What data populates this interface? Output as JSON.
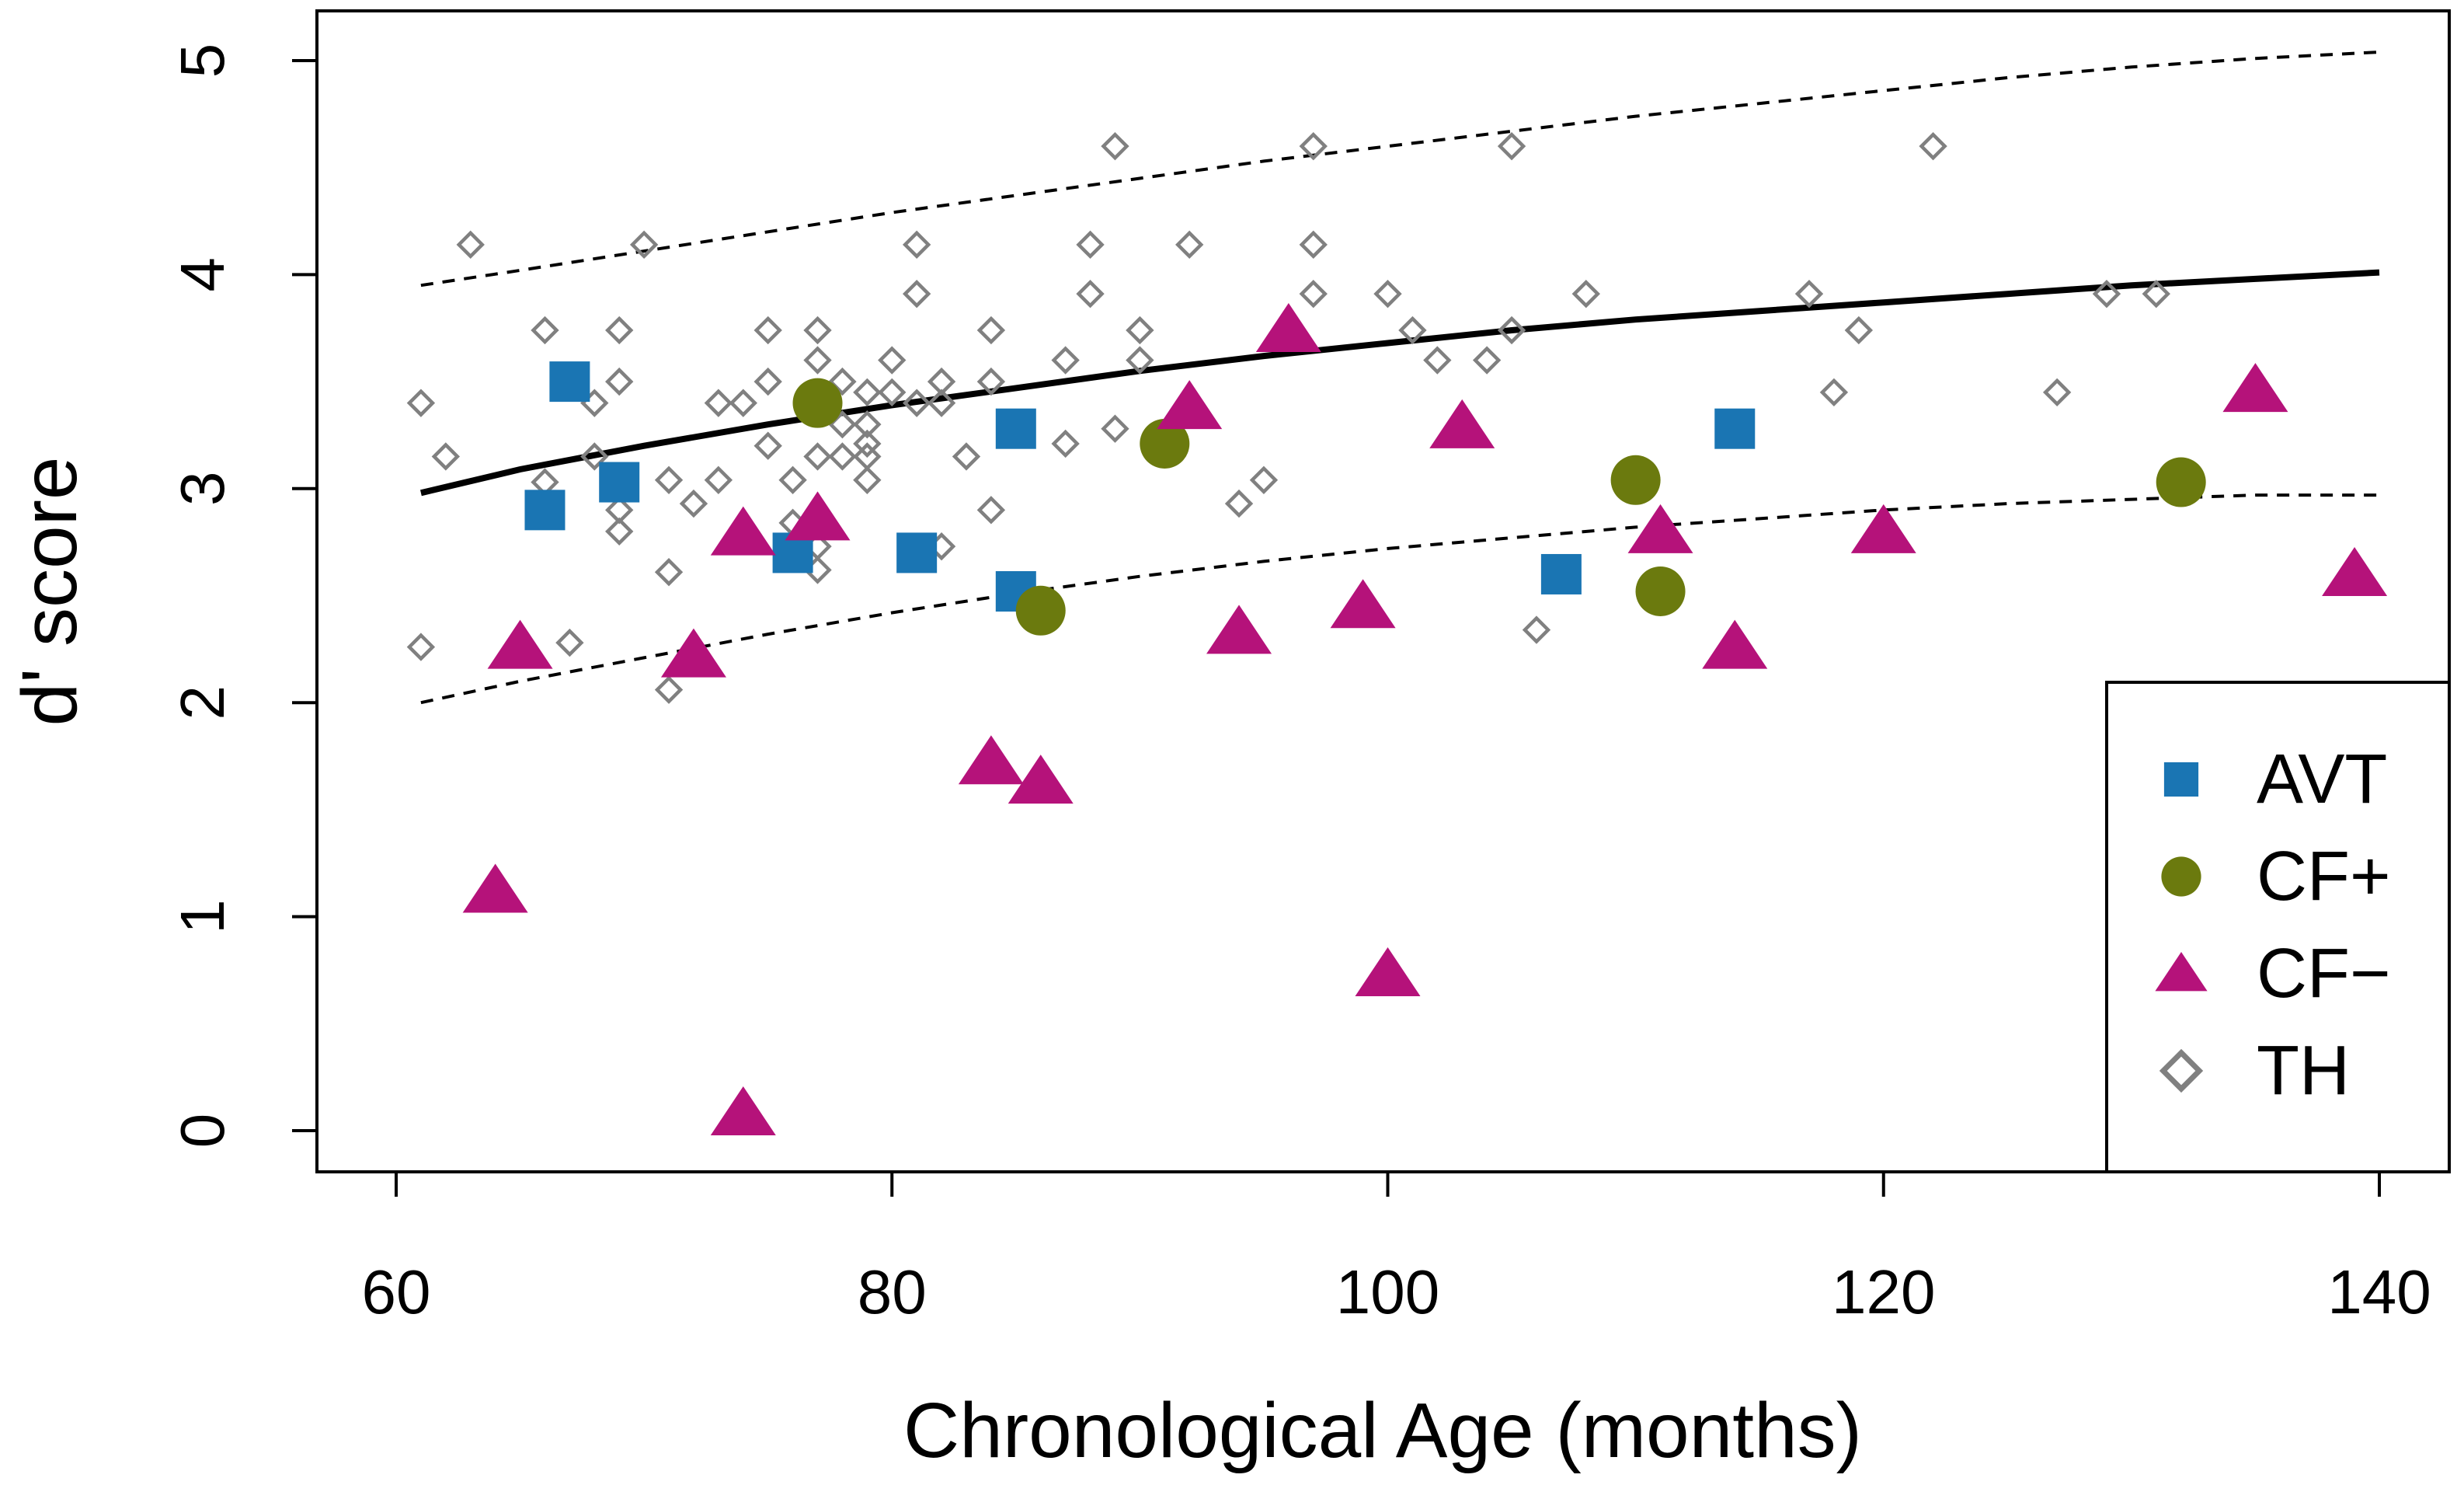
{
  "chart_data": {
    "type": "scatter",
    "title": "",
    "xlabel": "Chronological Age (months)",
    "ylabel": "d' score",
    "xlim": [
      57,
      143
    ],
    "ylim": [
      -0.2,
      5.25
    ],
    "xticks": [
      60,
      80,
      100,
      120,
      140
    ],
    "yticks": [
      0,
      1,
      2,
      3,
      4,
      5
    ],
    "grid": false,
    "legend_position": "bottom-right",
    "series": [
      {
        "name": "AVT",
        "marker": "square",
        "color": "#1a75b3",
        "points": [
          [
            66,
            2.9
          ],
          [
            67,
            3.5
          ],
          [
            69,
            3.03
          ],
          [
            76,
            2.7
          ],
          [
            81,
            2.7
          ],
          [
            85,
            3.28
          ],
          [
            85,
            2.52
          ],
          [
            107,
            2.6
          ],
          [
            114,
            3.28
          ]
        ]
      },
      {
        "name": "CF+",
        "marker": "circle",
        "color": "#6b7a0e",
        "points": [
          [
            77,
            3.4
          ],
          [
            86,
            2.43
          ],
          [
            91,
            3.21
          ],
          [
            110,
            3.04
          ],
          [
            111,
            2.52
          ],
          [
            132,
            3.03
          ]
        ]
      },
      {
        "name": "CF−",
        "marker": "triangle",
        "color": "#b5127a",
        "points": [
          [
            64,
            1.12
          ],
          [
            65,
            2.26
          ],
          [
            72,
            2.22
          ],
          [
            74,
            2.79
          ],
          [
            74,
            0.08
          ],
          [
            77,
            2.86
          ],
          [
            84,
            1.72
          ],
          [
            86,
            1.63
          ],
          [
            92,
            3.38
          ],
          [
            94,
            2.33
          ],
          [
            96,
            3.74
          ],
          [
            99,
            2.45
          ],
          [
            100,
            0.73
          ],
          [
            103,
            3.29
          ],
          [
            111,
            2.8
          ],
          [
            114,
            2.26
          ],
          [
            120,
            2.8
          ],
          [
            135,
            3.46
          ],
          [
            139,
            2.6
          ]
        ]
      },
      {
        "name": "TH",
        "marker": "diamond-open",
        "color": "#808080",
        "points": [
          [
            61,
            3.4
          ],
          [
            61,
            2.26
          ],
          [
            62,
            3.15
          ],
          [
            63,
            4.14
          ],
          [
            66,
            3.74
          ],
          [
            66,
            3.03
          ],
          [
            67,
            2.28
          ],
          [
            68,
            3.4
          ],
          [
            68,
            3.15
          ],
          [
            69,
            3.74
          ],
          [
            69,
            3.5
          ],
          [
            69,
            2.9
          ],
          [
            69,
            2.8
          ],
          [
            70,
            4.14
          ],
          [
            71,
            3.04
          ],
          [
            71,
            2.61
          ],
          [
            71,
            2.06
          ],
          [
            72,
            2.93
          ],
          [
            73,
            3.4
          ],
          [
            73,
            3.04
          ],
          [
            74,
            3.4
          ],
          [
            75,
            3.74
          ],
          [
            75,
            3.5
          ],
          [
            75,
            3.2
          ],
          [
            76,
            3.04
          ],
          [
            76,
            2.84
          ],
          [
            77,
            3.74
          ],
          [
            77,
            3.6
          ],
          [
            77,
            3.15
          ],
          [
            77,
            2.73
          ],
          [
            77,
            2.62
          ],
          [
            78,
            3.5
          ],
          [
            78,
            3.3
          ],
          [
            78,
            3.15
          ],
          [
            79,
            3.45
          ],
          [
            79,
            3.3
          ],
          [
            79,
            3.21
          ],
          [
            79,
            3.15
          ],
          [
            79,
            3.04
          ],
          [
            80,
            3.6
          ],
          [
            80,
            3.45
          ],
          [
            81,
            4.14
          ],
          [
            81,
            3.91
          ],
          [
            81,
            3.4
          ],
          [
            82,
            3.5
          ],
          [
            82,
            3.4
          ],
          [
            82,
            2.73
          ],
          [
            83,
            3.15
          ],
          [
            84,
            3.74
          ],
          [
            84,
            3.5
          ],
          [
            84,
            2.9
          ],
          [
            87,
            3.6
          ],
          [
            87,
            3.21
          ],
          [
            88,
            4.14
          ],
          [
            88,
            3.91
          ],
          [
            89,
            4.6
          ],
          [
            89,
            3.28
          ],
          [
            90,
            3.74
          ],
          [
            90,
            3.6
          ],
          [
            92,
            4.14
          ],
          [
            94,
            2.93
          ],
          [
            95,
            3.04
          ],
          [
            97,
            4.6
          ],
          [
            97,
            4.14
          ],
          [
            97,
            3.91
          ],
          [
            100,
            3.91
          ],
          [
            101,
            3.74
          ],
          [
            102,
            3.6
          ],
          [
            104,
            3.6
          ],
          [
            105,
            4.6
          ],
          [
            105,
            3.74
          ],
          [
            106,
            2.34
          ],
          [
            108,
            3.91
          ],
          [
            117,
            3.91
          ],
          [
            118,
            3.45
          ],
          [
            119,
            3.74
          ],
          [
            122,
            4.6
          ],
          [
            127,
            3.45
          ],
          [
            129,
            3.91
          ],
          [
            131,
            3.91
          ]
        ]
      }
    ],
    "fit_lines": [
      {
        "name": "fit",
        "style": "solid",
        "x": [
          61,
          65,
          70,
          75,
          80,
          85,
          90,
          95,
          100,
          105,
          110,
          115,
          120,
          125,
          130,
          135,
          140
        ],
        "y": [
          2.98,
          3.09,
          3.2,
          3.3,
          3.39,
          3.47,
          3.55,
          3.62,
          3.68,
          3.74,
          3.79,
          3.83,
          3.87,
          3.91,
          3.95,
          3.98,
          4.01
        ]
      },
      {
        "name": "upper-bound",
        "style": "dashed",
        "x": [
          61,
          65,
          70,
          75,
          80,
          85,
          90,
          95,
          100,
          105,
          110,
          115,
          120,
          125,
          130,
          135,
          140
        ],
        "y": [
          3.95,
          4.02,
          4.11,
          4.2,
          4.29,
          4.37,
          4.45,
          4.53,
          4.6,
          4.67,
          4.74,
          4.8,
          4.86,
          4.92,
          4.97,
          5.01,
          5.04
        ]
      },
      {
        "name": "lower-bound",
        "style": "dashed",
        "x": [
          61,
          65,
          70,
          75,
          80,
          85,
          90,
          95,
          100,
          105,
          110,
          115,
          120,
          125,
          130,
          135,
          140
        ],
        "y": [
          2.0,
          2.1,
          2.21,
          2.32,
          2.42,
          2.51,
          2.59,
          2.66,
          2.72,
          2.77,
          2.82,
          2.86,
          2.9,
          2.93,
          2.95,
          2.97,
          2.97
        ]
      }
    ]
  }
}
